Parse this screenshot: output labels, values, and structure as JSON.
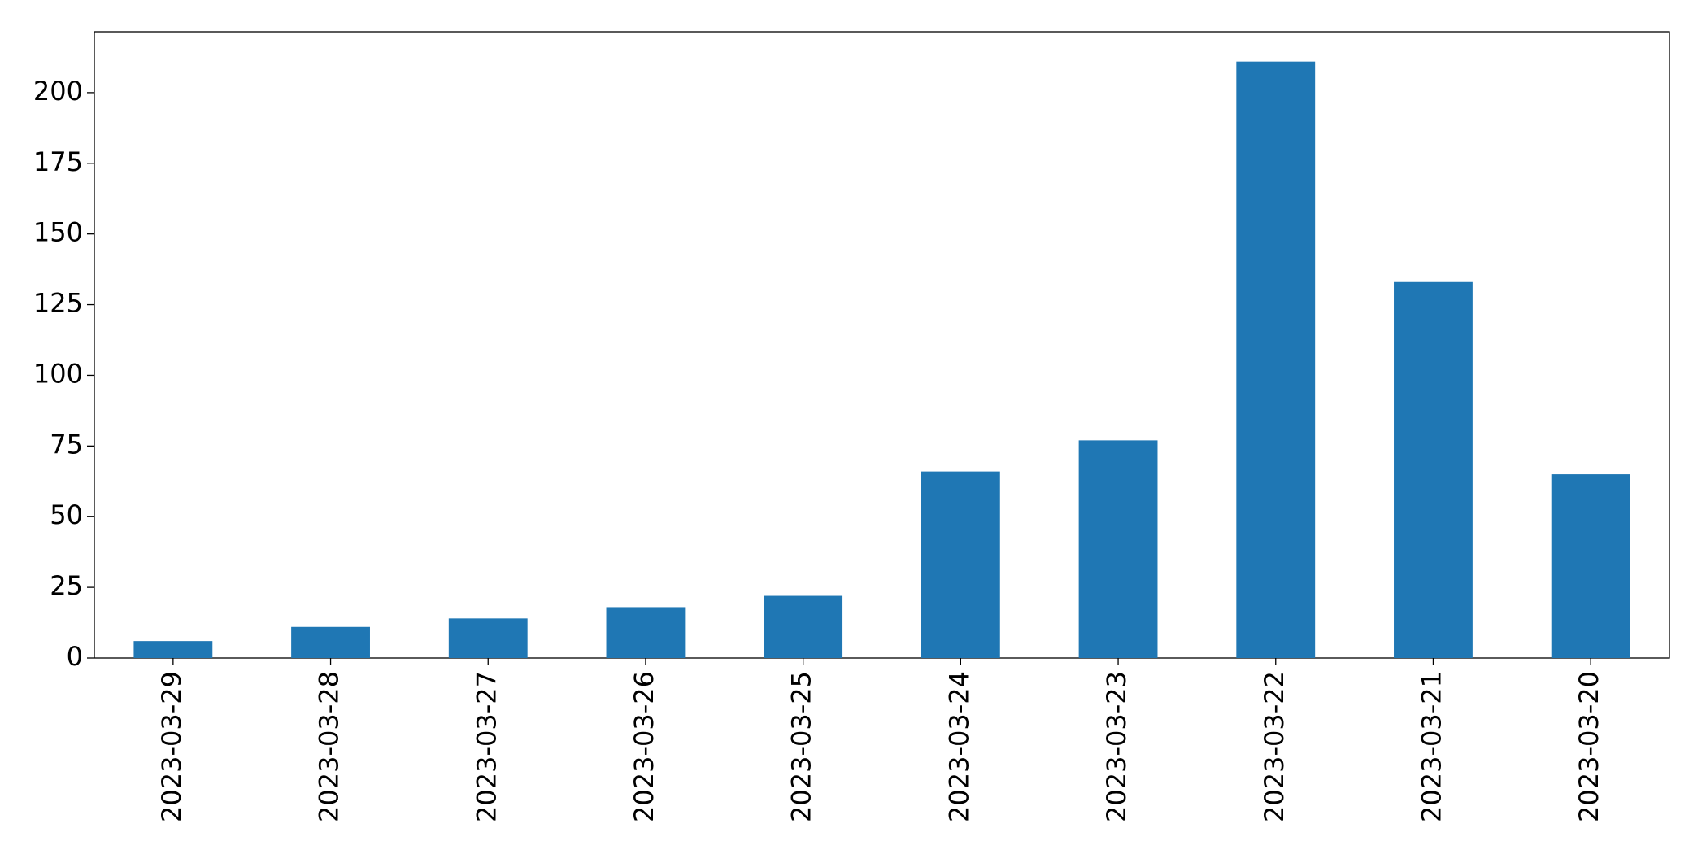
{
  "chart_data": {
    "type": "bar",
    "categories": [
      "2023-03-29",
      "2023-03-28",
      "2023-03-27",
      "2023-03-26",
      "2023-03-25",
      "2023-03-24",
      "2023-03-23",
      "2023-03-22",
      "2023-03-21",
      "2023-03-20"
    ],
    "values": [
      6,
      11,
      14,
      18,
      22,
      66,
      77,
      211,
      133,
      65
    ],
    "color": "#1f77b4",
    "ylim": [
      0,
      221.55
    ],
    "yticks": [
      0,
      25,
      50,
      75,
      100,
      125,
      150,
      175,
      200
    ],
    "grid": false
  }
}
